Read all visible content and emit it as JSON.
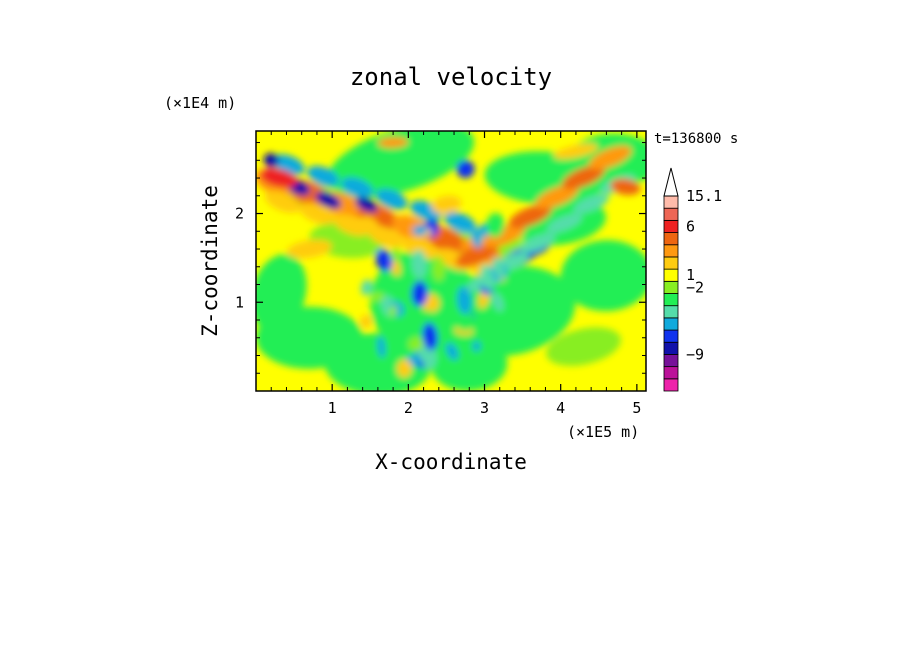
{
  "chart_data": {
    "type": "heatmap",
    "title": "zonal velocity",
    "xlabel": "X-coordinate",
    "ylabel": "Z-coordinate",
    "x_scale_note": "(×1E5 m)",
    "y_scale_note": "(×1E4 m)",
    "time_label": "t=136800 s",
    "xlim": [
      0,
      5.12
    ],
    "ylim": [
      0,
      2.93
    ],
    "x_ticks": [
      1,
      2,
      3,
      4,
      5
    ],
    "y_ticks": [
      1,
      2
    ],
    "x_tick_labels": [
      "1",
      "2",
      "3",
      "4",
      "5"
    ],
    "y_tick_labels": [
      "1",
      "2"
    ],
    "colorbar": {
      "levels_colors": [
        "#ee22aa",
        "#bb1199",
        "#771199",
        "#1111aa",
        "#1133ee",
        "#11aadd",
        "#55ddaa",
        "#22ee55",
        "#88ee22",
        "#ffff00",
        "#ffcc11",
        "#ff9911",
        "#ee6611",
        "#ee2222",
        "#ee6655",
        "#ffbbaa"
      ],
      "labels": [
        "15.1",
        "6",
        "1",
        "−2",
        "−9"
      ]
    }
  }
}
